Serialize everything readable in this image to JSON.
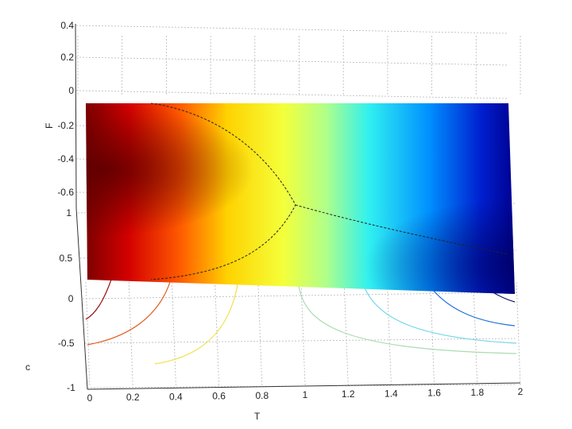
{
  "chart_data": {
    "type": "surface3d",
    "xlabel": "T",
    "ylabel": "c",
    "zlabel": "F",
    "xlim": [
      0,
      2
    ],
    "ylim": [
      -1,
      1
    ],
    "zlim": [
      -0.7,
      0.4
    ],
    "x_ticks": [
      "0",
      "0.2",
      "0.4",
      "0.6",
      "0.8",
      "1",
      "1.2",
      "1.4",
      "1.6",
      "1.8",
      "2"
    ],
    "c_ticks": [
      "1",
      "0.5",
      "0",
      "-0.5",
      "-1"
    ],
    "f_ticks": [
      "0.4",
      "0.2",
      "0",
      "-0.2",
      "-0.4",
      "-0.6"
    ],
    "colormap": "jet",
    "grid": true,
    "contour_levels": [
      {
        "T_start": 0.0,
        "color": "#9a1010"
      },
      {
        "T_start": 0.25,
        "color": "#e25a1c"
      },
      {
        "T_start": 0.55,
        "color": "#f2e04a"
      },
      {
        "T_start": 1.0,
        "color": "#a8dcb0"
      },
      {
        "T_start": 1.3,
        "color": "#6fd6e8"
      },
      {
        "T_start": 1.6,
        "color": "#2070d8"
      },
      {
        "T_start": 1.85,
        "color": "#101a6a"
      }
    ]
  }
}
